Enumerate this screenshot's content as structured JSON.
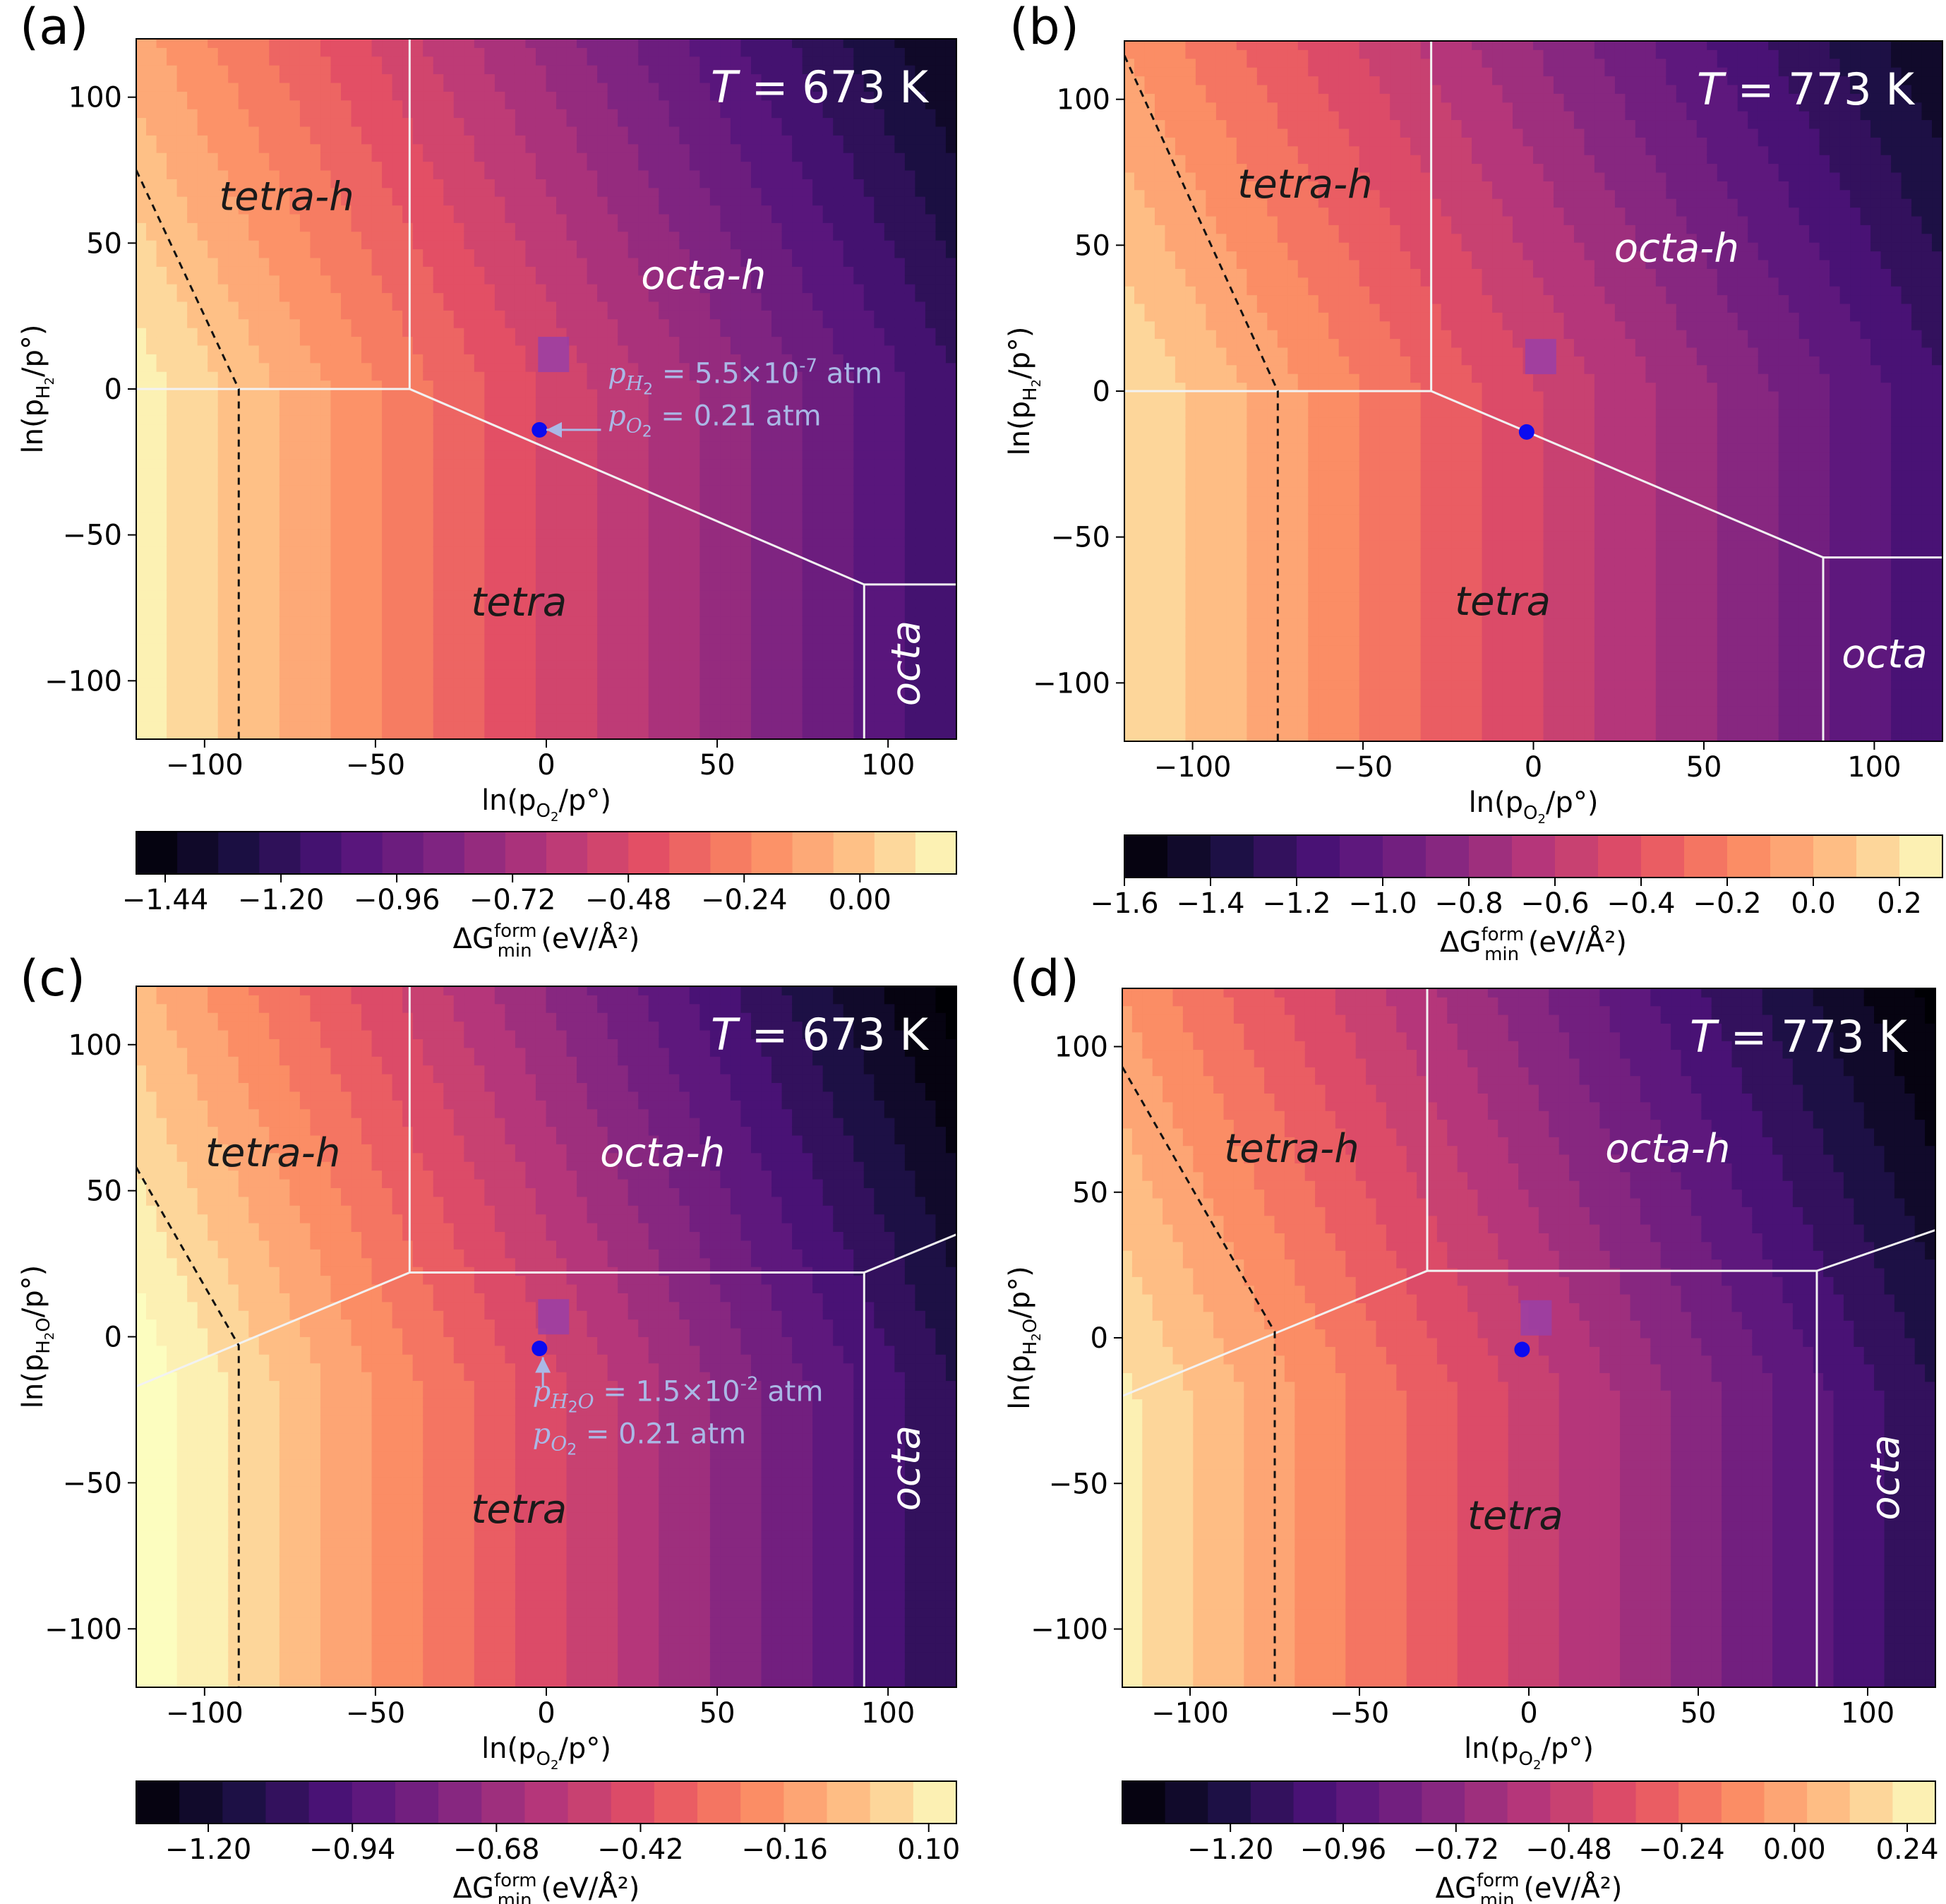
{
  "chart_data": [
    {
      "type": "heatmap",
      "panel_label": "(a)",
      "temperature_label": "T = 673 K",
      "x_label": {
        "main": "ln(p",
        "sub": "O",
        "sub2": "2",
        "tail": "/p°)"
      },
      "y_label": {
        "main": "ln(p",
        "sub": "H",
        "sub2": "2",
        "tail": "/p°)"
      },
      "xlim": [
        -120,
        120
      ],
      "ylim": [
        -120,
        120
      ],
      "x_ticks": [
        -100,
        -50,
        0,
        50,
        100
      ],
      "x_tick_labels": [
        "−100",
        "−50",
        "0",
        "50",
        "100"
      ],
      "y_ticks": [
        100,
        50,
        0,
        -50,
        -100
      ],
      "y_tick_labels": [
        "100",
        "50",
        "0",
        "−50",
        "−100"
      ],
      "grad": {
        "a": -0.0055,
        "b": -0.0023,
        "c": -0.49
      },
      "colorbar": {
        "min": -1.5,
        "max": 0.2,
        "ticks": [
          -1.44,
          -1.2,
          -0.96,
          -0.72,
          -0.48,
          -0.24,
          0.0
        ],
        "tick_labels": [
          "−1.44",
          "−1.20",
          "−0.96",
          "−0.72",
          "−0.48",
          "−0.24",
          "0.00"
        ],
        "levels": 20
      },
      "colorbar_label": {
        "main": "ΔG",
        "sup": "form",
        "sub": "min",
        "tail": " (eV/Å²)"
      },
      "boundaries": [
        [
          [
            -120,
            0
          ],
          [
            -40,
            0
          ],
          [
            -40,
            120
          ]
        ],
        [
          [
            -40,
            0
          ],
          [
            93,
            -67
          ],
          [
            93,
            -120
          ]
        ],
        [
          [
            93,
            -67
          ],
          [
            120,
            -67
          ]
        ]
      ],
      "dashed": [
        [
          [
            -120,
            75
          ],
          [
            -90,
            0
          ],
          [
            -90,
            -120
          ]
        ]
      ],
      "regions": [
        {
          "name": "tetra-h",
          "x": -76,
          "y": 65,
          "color": "#1a1a1a",
          "rotate": 0
        },
        {
          "name": "octa-h",
          "x": 46,
          "y": 38,
          "color": "#ffffff",
          "rotate": 0
        },
        {
          "name": "tetra",
          "x": -8,
          "y": -74,
          "color": "#1a1a1a",
          "rotate": 0
        },
        {
          "name": "octa",
          "x": 106,
          "y": -94,
          "color": "#ffffff",
          "rotate": -90
        }
      ],
      "point": {
        "x": -2,
        "y": -14
      },
      "marker_square": {
        "x": -2,
        "y": 7
      },
      "annotation": {
        "lines": [
          {
            "v": "p",
            "s": "H",
            "s2": "2",
            "e": "",
            "text": " = 5.5×10",
            "sup": "-7",
            "tail": " atm"
          },
          {
            "v": "p",
            "s": "O",
            "s2": "2",
            "e": "",
            "text": " = 0.21 atm",
            "sup": "",
            "tail": ""
          }
        ],
        "x": 18,
        "y": 2,
        "arrow_from": [
          16,
          -14
        ],
        "arrow_to": [
          0,
          -14
        ]
      }
    },
    {
      "type": "heatmap",
      "panel_label": "(b)",
      "temperature_label": "T = 773 K",
      "x_label": {
        "main": "ln(p",
        "sub": "O",
        "sub2": "2",
        "tail": "/p°)"
      },
      "y_label": {
        "main": "ln(p",
        "sub": "H",
        "sub2": "2",
        "tail": "/p°)"
      },
      "xlim": [
        -120,
        120
      ],
      "ylim": [
        -120,
        120
      ],
      "x_ticks": [
        -100,
        -50,
        0,
        50,
        100
      ],
      "x_tick_labels": [
        "−100",
        "−50",
        "0",
        "50",
        "100"
      ],
      "y_ticks": [
        100,
        50,
        0,
        -50,
        -100
      ],
      "y_tick_labels": [
        "100",
        "50",
        "0",
        "−50",
        "−100"
      ],
      "grad": {
        "a": -0.0058,
        "b": -0.0026,
        "c": -0.49
      },
      "colorbar": {
        "min": -1.6,
        "max": 0.3,
        "ticks": [
          -1.6,
          -1.4,
          -1.2,
          -1.0,
          -0.8,
          -0.6,
          -0.4,
          -0.2,
          0.0,
          0.2
        ],
        "tick_labels": [
          "−1.6",
          "−1.4",
          "−1.2",
          "−1.0",
          "−0.8",
          "−0.6",
          "−0.4",
          "−0.2",
          "0.0",
          "0.2"
        ],
        "levels": 19
      },
      "colorbar_label": {
        "main": "ΔG",
        "sup": "form",
        "sub": "min",
        "tail": " (eV/Å²)"
      },
      "boundaries": [
        [
          [
            -120,
            0
          ],
          [
            -30,
            0
          ],
          [
            -30,
            120
          ]
        ],
        [
          [
            -30,
            0
          ],
          [
            85,
            -57
          ],
          [
            85,
            -120
          ]
        ],
        [
          [
            85,
            -57
          ],
          [
            120,
            -57
          ]
        ]
      ],
      "dashed": [
        [
          [
            -120,
            115
          ],
          [
            -75,
            0
          ],
          [
            -75,
            -120
          ]
        ]
      ],
      "regions": [
        {
          "name": "tetra-h",
          "x": -67,
          "y": 70,
          "color": "#1a1a1a",
          "rotate": 0
        },
        {
          "name": "octa-h",
          "x": 42,
          "y": 48,
          "color": "#ffffff",
          "rotate": 0
        },
        {
          "name": "tetra",
          "x": -9,
          "y": -73,
          "color": "#1a1a1a",
          "rotate": 0
        },
        {
          "name": "octa",
          "x": 103,
          "y": -91,
          "color": "#ffffff",
          "rotate": 0
        }
      ],
      "point": {
        "x": -2,
        "y": -14
      },
      "marker_square": {
        "x": -2,
        "y": 7
      },
      "annotation": null
    },
    {
      "type": "heatmap",
      "panel_label": "(c)",
      "temperature_label": "T = 673 K",
      "x_label": {
        "main": "ln(p",
        "sub": "O",
        "sub2": "2",
        "tail": "/p°)"
      },
      "y_label": {
        "main": "ln(p",
        "sub": "H",
        "sub2": "2",
        "sub3": "O",
        "tail": "/p°)"
      },
      "xlim": [
        -120,
        120
      ],
      "ylim": [
        -120,
        120
      ],
      "x_ticks": [
        -100,
        -50,
        0,
        50,
        100
      ],
      "x_tick_labels": [
        "−100",
        "−50",
        "0",
        "50",
        "100"
      ],
      "y_ticks": [
        100,
        50,
        0,
        -50,
        -100
      ],
      "y_tick_labels": [
        "100",
        "50",
        "0",
        "−50",
        "−100"
      ],
      "grad": {
        "a": -0.0055,
        "b": -0.002,
        "c": -0.44
      },
      "colorbar": {
        "min": -1.33,
        "max": 0.15,
        "ticks": [
          -1.2,
          -0.94,
          -0.68,
          -0.42,
          -0.16,
          0.1
        ],
        "tick_labels": [
          "−1.20",
          "−0.94",
          "−0.68",
          "−0.42",
          "−0.16",
          "0.10"
        ],
        "levels": 19
      },
      "colorbar_label": {
        "main": "ΔG",
        "sup": "form",
        "sub": "min",
        "tail": " (eV/Å²)"
      },
      "boundaries": [
        [
          [
            -120,
            -17
          ],
          [
            -40,
            22
          ],
          [
            -40,
            120
          ]
        ],
        [
          [
            -40,
            22
          ],
          [
            93,
            22
          ],
          [
            93,
            -120
          ]
        ],
        [
          [
            93,
            22
          ],
          [
            120,
            35
          ]
        ]
      ],
      "dashed": [
        [
          [
            -120,
            58
          ],
          [
            -90,
            -3
          ],
          [
            -90,
            -120
          ]
        ]
      ],
      "regions": [
        {
          "name": "tetra-h",
          "x": -80,
          "y": 62,
          "color": "#1a1a1a",
          "rotate": 0
        },
        {
          "name": "octa-h",
          "x": 34,
          "y": 62,
          "color": "#ffffff",
          "rotate": 0
        },
        {
          "name": "tetra",
          "x": -8,
          "y": -60,
          "color": "#1a1a1a",
          "rotate": 0
        },
        {
          "name": "octa",
          "x": 106,
          "y": -45,
          "color": "#ffffff",
          "rotate": -90
        }
      ],
      "point": {
        "x": -2,
        "y": -4
      },
      "marker_square": {
        "x": -2,
        "y": 2
      },
      "annotation": {
        "lines": [
          {
            "v": "p",
            "s": "H",
            "s2": "2",
            "e": "O",
            "text": " = 1.5×10",
            "sup": "-2",
            "tail": " atm"
          },
          {
            "v": "p",
            "s": "O",
            "s2": "2",
            "e": "",
            "text": " = 0.21 atm",
            "sup": "",
            "tail": ""
          }
        ],
        "x": -4,
        "y": -22,
        "arrow_from": [
          -1,
          -17
        ],
        "arrow_to": [
          -1,
          -7
        ]
      }
    },
    {
      "type": "heatmap",
      "panel_label": "(d)",
      "temperature_label": "T = 773 K",
      "x_label": {
        "main": "ln(p",
        "sub": "O",
        "sub2": "2",
        "tail": "/p°)"
      },
      "y_label": {
        "main": "ln(p",
        "sub": "H",
        "sub2": "2",
        "sub3": "O",
        "tail": "/p°)"
      },
      "xlim": [
        -120,
        120
      ],
      "ylim": [
        -120,
        120
      ],
      "x_ticks": [
        -100,
        -50,
        0,
        50,
        100
      ],
      "x_tick_labels": [
        "−100",
        "−50",
        "0",
        "50",
        "100"
      ],
      "y_ticks": [
        100,
        50,
        0,
        -50,
        -100
      ],
      "y_tick_labels": [
        "100",
        "50",
        "0",
        "−50",
        "−100"
      ],
      "grad": {
        "a": -0.0058,
        "b": -0.0022,
        "c": -0.46
      },
      "colorbar": {
        "min": -1.43,
        "max": 0.3,
        "ticks": [
          -1.2,
          -0.96,
          -0.72,
          -0.48,
          -0.24,
          0.0,
          0.24
        ],
        "tick_labels": [
          "−1.20",
          "−0.96",
          "−0.72",
          "−0.48",
          "−0.24",
          "0.00",
          "0.24"
        ],
        "levels": 19
      },
      "colorbar_label": {
        "main": "ΔG",
        "sup": "form",
        "sub": "min",
        "tail": " (eV/Å²)"
      },
      "boundaries": [
        [
          [
            -120,
            -20
          ],
          [
            -30,
            23
          ],
          [
            -30,
            120
          ]
        ],
        [
          [
            -30,
            23
          ],
          [
            85,
            23
          ],
          [
            85,
            -120
          ]
        ],
        [
          [
            85,
            23
          ],
          [
            120,
            37
          ]
        ]
      ],
      "dashed": [
        [
          [
            -120,
            93
          ],
          [
            -75,
            2
          ],
          [
            -75,
            -120
          ]
        ]
      ],
      "regions": [
        {
          "name": "tetra-h",
          "x": -70,
          "y": 64,
          "color": "#1a1a1a",
          "rotate": 0
        },
        {
          "name": "octa-h",
          "x": 41,
          "y": 64,
          "color": "#ffffff",
          "rotate": 0
        },
        {
          "name": "tetra",
          "x": -4,
          "y": -62,
          "color": "#1a1a1a",
          "rotate": 0
        },
        {
          "name": "octa",
          "x": 106,
          "y": -48,
          "color": "#ffffff",
          "rotate": -90
        }
      ],
      "point": {
        "x": -2,
        "y": -4
      },
      "marker_square": {
        "x": -2,
        "y": 2
      },
      "annotation": null
    }
  ],
  "colors": {
    "boundary": "#f2f2f2",
    "dashed": "#111111",
    "point": "#0b0bf0",
    "marker_square": "#9a3fa6",
    "annotation": "#aab8e6"
  }
}
